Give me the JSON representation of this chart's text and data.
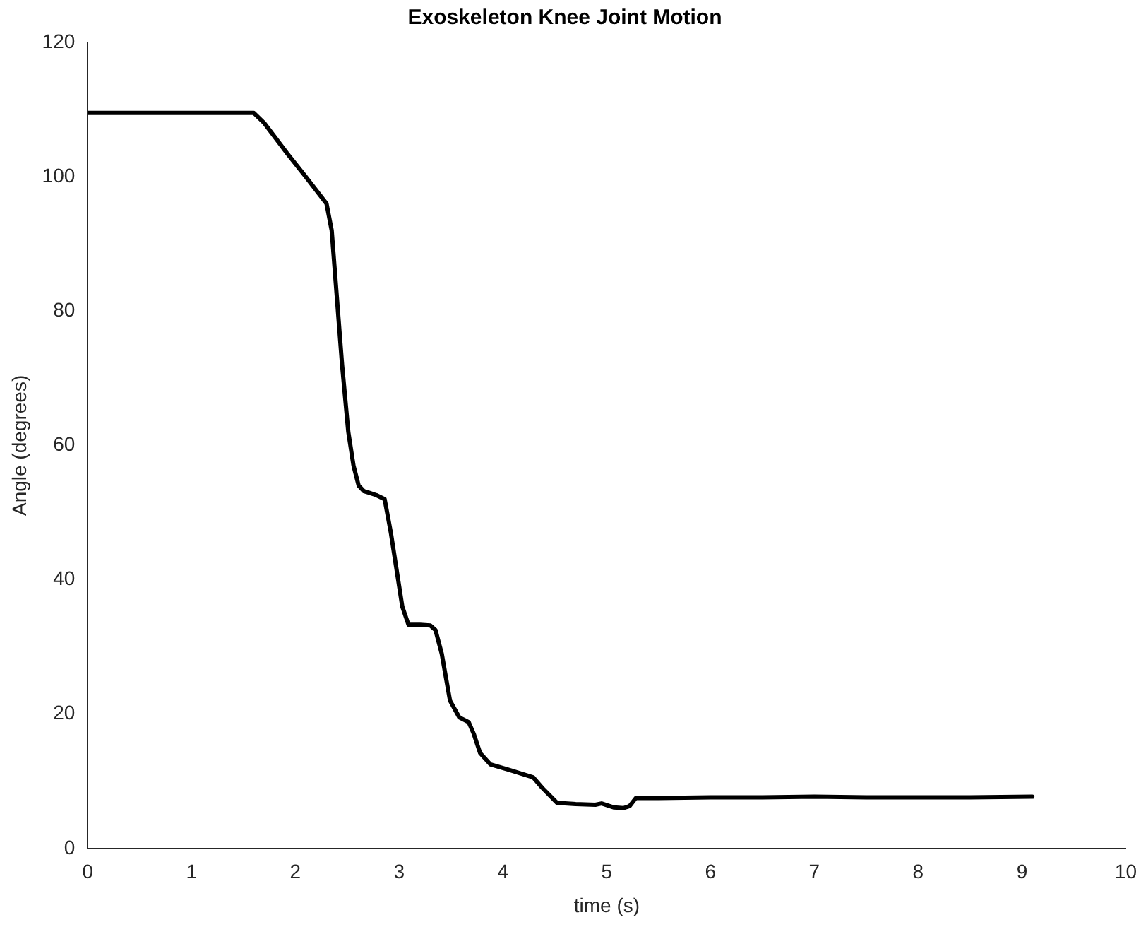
{
  "chart_data": {
    "type": "line",
    "title": "Exoskeleton Knee Joint Motion",
    "xlabel": "time (s)",
    "ylabel": "Angle (degrees)",
    "xlim": [
      0,
      10
    ],
    "xticks": [
      0,
      1,
      2,
      3,
      4,
      5,
      6,
      7,
      8,
      9,
      10
    ],
    "ylim": [
      0,
      120
    ],
    "yticks": [
      0,
      20,
      40,
      60,
      80,
      100,
      120
    ],
    "grid": false,
    "legend": false,
    "marker": "none",
    "line_style": "solid",
    "series": [
      {
        "color": "#000000",
        "x": [
          0,
          0.5,
          1,
          1.5,
          1.6,
          1.7,
          1.92,
          2.1,
          2.3,
          2.35,
          2.4,
          2.45,
          2.51,
          2.56,
          2.61,
          2.66,
          2.7,
          2.78,
          2.86,
          2.92,
          2.97,
          3.03,
          3.09,
          3.2,
          3.3,
          3.35,
          3.41,
          3.49,
          3.58,
          3.67,
          3.72,
          3.78,
          3.88,
          4.06,
          4.29,
          4.38,
          4.52,
          4.7,
          4.89,
          4.95,
          5.07,
          5.16,
          5.22,
          5.28,
          5.5,
          6,
          6.5,
          7,
          7.5,
          8,
          8.5,
          9.1
        ],
        "values": [
          109.5,
          109.5,
          109.5,
          109.5,
          109.5,
          108,
          103.5,
          100,
          96,
          92,
          82,
          72,
          62,
          57,
          54,
          53.2,
          53,
          52.6,
          52,
          47,
          42,
          36,
          33.3,
          33.3,
          33.2,
          32.5,
          29,
          22,
          19.5,
          18.8,
          17,
          14.2,
          12.5,
          11.7,
          10.6,
          9,
          6.8,
          6.6,
          6.5,
          6.7,
          6.1,
          6,
          6.3,
          7.5,
          7.5,
          7.6,
          7.6,
          7.7,
          7.6,
          7.6,
          7.6,
          7.7
        ]
      }
    ]
  }
}
